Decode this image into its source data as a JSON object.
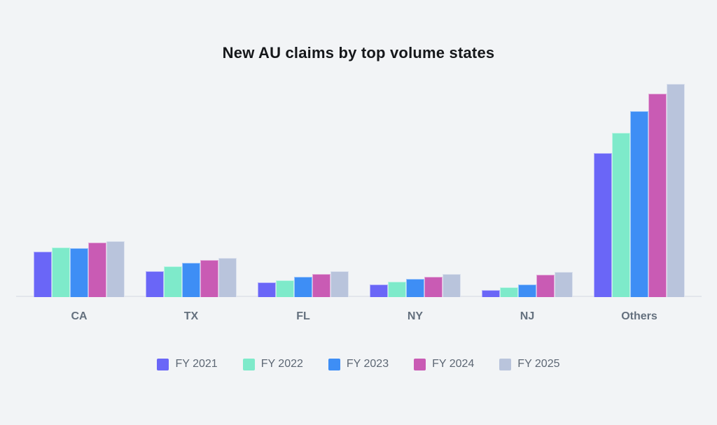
{
  "page": {
    "background_color": "#F2F4F6",
    "axis_line_color": "#E3E6EB"
  },
  "chart_data": {
    "type": "bar",
    "title": "New AU claims by top volume states",
    "xlabel": "",
    "ylabel": "",
    "categories": [
      "CA",
      "TX",
      "FL",
      "NY",
      "NJ",
      "Others"
    ],
    "series": [
      {
        "name": "FY 2021",
        "color": "#6A66F7",
        "values": [
          65,
          37,
          21,
          18,
          10,
          206
        ]
      },
      {
        "name": "FY 2022",
        "color": "#7EEACA",
        "values": [
          71,
          44,
          24,
          22,
          14,
          235
        ]
      },
      {
        "name": "FY 2023",
        "color": "#3E8EF5",
        "values": [
          70,
          49,
          29,
          26,
          18,
          266
        ]
      },
      {
        "name": "FY 2024",
        "color": "#C95BB4",
        "values": [
          78,
          53,
          33,
          29,
          32,
          291
        ]
      },
      {
        "name": "FY 2025",
        "color": "#B9C4DC",
        "values": [
          80,
          56,
          37,
          33,
          36,
          305
        ]
      }
    ],
    "ylim": [
      0,
      320
    ],
    "y_axis_visible": false,
    "x_axis_line_visible": true,
    "grid": false,
    "data_labels": false,
    "legend_position": "bottom",
    "value_units": "relative (no value axis shown in chart)"
  }
}
